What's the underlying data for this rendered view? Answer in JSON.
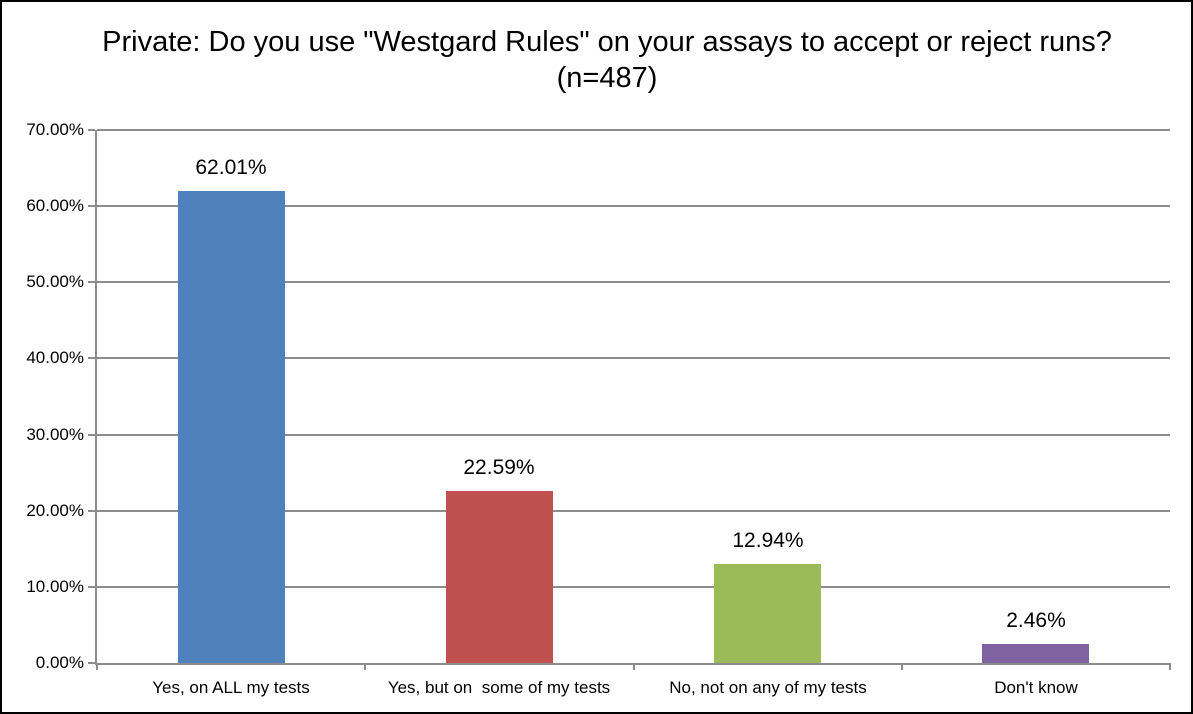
{
  "chart_data": {
    "type": "bar",
    "title": "Private: Do you use \"Westgard Rules\" on your assays to accept or reject runs? (n=487)",
    "categories": [
      "Yes, on ALL my tests",
      "Yes, but on  some of my tests",
      "No, not on any of my tests",
      "Don't know"
    ],
    "values": [
      62.01,
      22.59,
      12.94,
      2.46
    ],
    "value_labels": [
      "62.01%",
      "22.59%",
      "12.94%",
      "2.46%"
    ],
    "bar_colors": [
      "#4F81BD",
      "#C0504D",
      "#9BBB59",
      "#8064A2"
    ],
    "xlabel": "",
    "ylabel": "",
    "ylim": [
      0,
      70
    ],
    "ytick_step": 10,
    "ytick_labels": [
      "0.00%",
      "10.00%",
      "20.00%",
      "30.00%",
      "40.00%",
      "50.00%",
      "60.00%",
      "70.00%"
    ],
    "grid": "horizontal",
    "legend": "none",
    "colors": {
      "gridline": "#8C8C8C",
      "axis": "#8C8C8C",
      "text": "#000000",
      "background": "#FFFFFF",
      "frame_border": "#000000"
    }
  }
}
